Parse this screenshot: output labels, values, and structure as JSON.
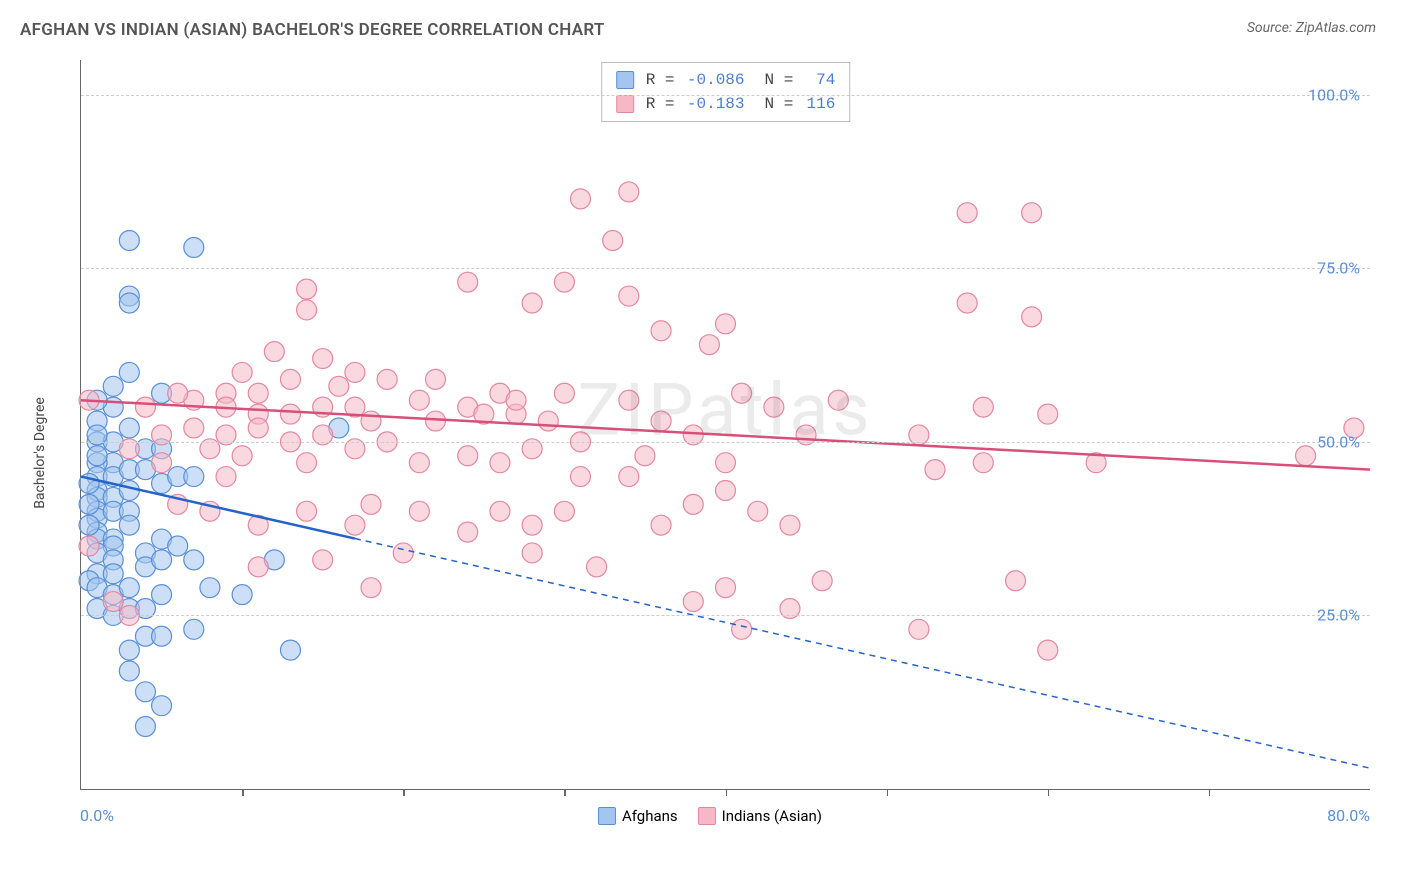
{
  "title": "AFGHAN VS INDIAN (ASIAN) BACHELOR'S DEGREE CORRELATION CHART",
  "source": "Source: ZipAtlas.com",
  "watermark": "ZIPatlas",
  "y_axis": {
    "label": "Bachelor's Degree"
  },
  "chart": {
    "type": "scatter",
    "background_color": "#ffffff",
    "grid_color": "#cccccc",
    "grid_dash": "4 4",
    "axis_color": "#666666",
    "xlim": [
      0,
      80
    ],
    "ylim": [
      0,
      105
    ],
    "x_start_label": "0.0%",
    "x_end_label": "80.0%",
    "x_tick_positions": [
      10,
      20,
      30,
      40,
      50,
      60,
      70
    ],
    "y_gridlines": [
      {
        "value": 25,
        "label": "25.0%"
      },
      {
        "value": 50,
        "label": "50.0%"
      },
      {
        "value": 75,
        "label": "75.0%"
      },
      {
        "value": 100,
        "label": "100.0%"
      }
    ],
    "marker_radius": 10,
    "marker_opacity": 0.55,
    "series": [
      {
        "id": "afghans",
        "label": "Afghans",
        "fill": "#a3c5ef",
        "stroke": "#5a8fd6",
        "line_color": "#2563c9",
        "line_width": 2.5,
        "regression": {
          "x1": 0,
          "y1": 45,
          "x2": 80,
          "y2": 3,
          "solid_until_x": 17
        },
        "R": "-0.086",
        "N": "74",
        "points": [
          [
            3,
            79
          ],
          [
            7,
            78
          ],
          [
            3,
            71
          ],
          [
            3,
            70
          ],
          [
            3,
            60
          ],
          [
            2,
            58
          ],
          [
            5,
            57
          ],
          [
            2,
            55
          ],
          [
            1,
            56
          ],
          [
            1,
            53
          ],
          [
            1,
            50
          ],
          [
            2,
            50
          ],
          [
            4,
            49
          ],
          [
            5,
            49
          ],
          [
            2,
            47
          ],
          [
            1,
            47
          ],
          [
            1,
            45
          ],
          [
            2,
            45
          ],
          [
            3,
            46
          ],
          [
            4,
            46
          ],
          [
            1,
            43
          ],
          [
            1,
            42
          ],
          [
            2,
            42
          ],
          [
            3,
            43
          ],
          [
            5,
            44
          ],
          [
            6,
            45
          ],
          [
            7,
            45
          ],
          [
            1,
            40
          ],
          [
            1,
            39
          ],
          [
            2,
            40
          ],
          [
            3,
            40
          ],
          [
            3,
            38
          ],
          [
            1,
            37
          ],
          [
            1,
            36
          ],
          [
            2,
            36
          ],
          [
            2,
            35
          ],
          [
            1,
            34
          ],
          [
            2,
            33
          ],
          [
            4,
            34
          ],
          [
            5,
            36
          ],
          [
            6,
            35
          ],
          [
            1,
            31
          ],
          [
            2,
            31
          ],
          [
            0.5,
            30
          ],
          [
            1,
            29
          ],
          [
            2,
            28
          ],
          [
            3,
            29
          ],
          [
            4,
            32
          ],
          [
            5,
            33
          ],
          [
            7,
            33
          ],
          [
            12,
            33
          ],
          [
            1,
            26
          ],
          [
            2,
            25
          ],
          [
            3,
            26
          ],
          [
            4,
            26
          ],
          [
            5,
            28
          ],
          [
            10,
            28
          ],
          [
            8,
            29
          ],
          [
            4,
            22
          ],
          [
            5,
            22
          ],
          [
            7,
            23
          ],
          [
            3,
            20
          ],
          [
            13,
            20
          ],
          [
            3,
            17
          ],
          [
            4,
            14
          ],
          [
            5,
            12
          ],
          [
            4,
            9
          ],
          [
            1,
            48
          ],
          [
            1,
            51
          ],
          [
            0.5,
            44
          ],
          [
            0.5,
            41
          ],
          [
            0.5,
            38
          ],
          [
            16,
            52
          ],
          [
            3,
            52
          ]
        ]
      },
      {
        "id": "indians",
        "label": "Indians (Asian)",
        "fill": "#f6b8c6",
        "stroke": "#e487a0",
        "line_color": "#d94f7a",
        "line_width": 2.5,
        "regression": {
          "x1": 0,
          "y1": 56,
          "x2": 80,
          "y2": 46,
          "solid_until_x": 80
        },
        "R": "-0.183",
        "N": "116",
        "points": [
          [
            34,
            86
          ],
          [
            31,
            85
          ],
          [
            59,
            83
          ],
          [
            33,
            79
          ],
          [
            55,
            83
          ],
          [
            14,
            72
          ],
          [
            14,
            69
          ],
          [
            24,
            73
          ],
          [
            30,
            73
          ],
          [
            28,
            70
          ],
          [
            34,
            71
          ],
          [
            55,
            70
          ],
          [
            59,
            68
          ],
          [
            40,
            67
          ],
          [
            36,
            66
          ],
          [
            39,
            64
          ],
          [
            12,
            63
          ],
          [
            15,
            62
          ],
          [
            10,
            60
          ],
          [
            17,
            60
          ],
          [
            13,
            59
          ],
          [
            16,
            58
          ],
          [
            19,
            59
          ],
          [
            22,
            59
          ],
          [
            9,
            57
          ],
          [
            11,
            57
          ],
          [
            26,
            57
          ],
          [
            24,
            55
          ],
          [
            27,
            54
          ],
          [
            7,
            56
          ],
          [
            9,
            55
          ],
          [
            11,
            54
          ],
          [
            13,
            54
          ],
          [
            15,
            55
          ],
          [
            17,
            55
          ],
          [
            21,
            56
          ],
          [
            30,
            57
          ],
          [
            34,
            56
          ],
          [
            79,
            52
          ],
          [
            76,
            48
          ],
          [
            60,
            54
          ],
          [
            63,
            47
          ],
          [
            56,
            47
          ],
          [
            56,
            55
          ],
          [
            52,
            51
          ],
          [
            53,
            46
          ],
          [
            47,
            56
          ],
          [
            45,
            51
          ],
          [
            43,
            55
          ],
          [
            41,
            57
          ],
          [
            40,
            47
          ],
          [
            38,
            51
          ],
          [
            36,
            53
          ],
          [
            35,
            48
          ],
          [
            34,
            45
          ],
          [
            31,
            50
          ],
          [
            31,
            45
          ],
          [
            29,
            53
          ],
          [
            28,
            49
          ],
          [
            27,
            56
          ],
          [
            26,
            47
          ],
          [
            25,
            54
          ],
          [
            24,
            48
          ],
          [
            22,
            53
          ],
          [
            21,
            47
          ],
          [
            19,
            50
          ],
          [
            18,
            53
          ],
          [
            17,
            49
          ],
          [
            15,
            51
          ],
          [
            14,
            47
          ],
          [
            13,
            50
          ],
          [
            11,
            52
          ],
          [
            10,
            48
          ],
          [
            9,
            51
          ],
          [
            8,
            49
          ],
          [
            7,
            52
          ],
          [
            5,
            51
          ],
          [
            5,
            47
          ],
          [
            3,
            49
          ],
          [
            2,
            27
          ],
          [
            3,
            25
          ],
          [
            0.5,
            35
          ],
          [
            40,
            43
          ],
          [
            38,
            41
          ],
          [
            36,
            38
          ],
          [
            42,
            40
          ],
          [
            44,
            38
          ],
          [
            30,
            40
          ],
          [
            28,
            38
          ],
          [
            26,
            40
          ],
          [
            24,
            37
          ],
          [
            21,
            40
          ],
          [
            20,
            34
          ],
          [
            18,
            41
          ],
          [
            17,
            38
          ],
          [
            14,
            40
          ],
          [
            11,
            38
          ],
          [
            9,
            45
          ],
          [
            8,
            40
          ],
          [
            6,
            41
          ],
          [
            46,
            30
          ],
          [
            44,
            26
          ],
          [
            58,
            30
          ],
          [
            40,
            29
          ],
          [
            38,
            27
          ],
          [
            41,
            23
          ],
          [
            52,
            23
          ],
          [
            60,
            20
          ],
          [
            28,
            34
          ],
          [
            32,
            32
          ],
          [
            15,
            33
          ],
          [
            11,
            32
          ],
          [
            18,
            29
          ],
          [
            4,
            55
          ],
          [
            6,
            57
          ],
          [
            0.5,
            56
          ]
        ]
      }
    ]
  },
  "bottom_legend": [
    {
      "label": "Afghans",
      "fill": "#a3c5ef",
      "stroke": "#5a8fd6"
    },
    {
      "label": "Indians (Asian)",
      "fill": "#f6b8c6",
      "stroke": "#e487a0"
    }
  ]
}
